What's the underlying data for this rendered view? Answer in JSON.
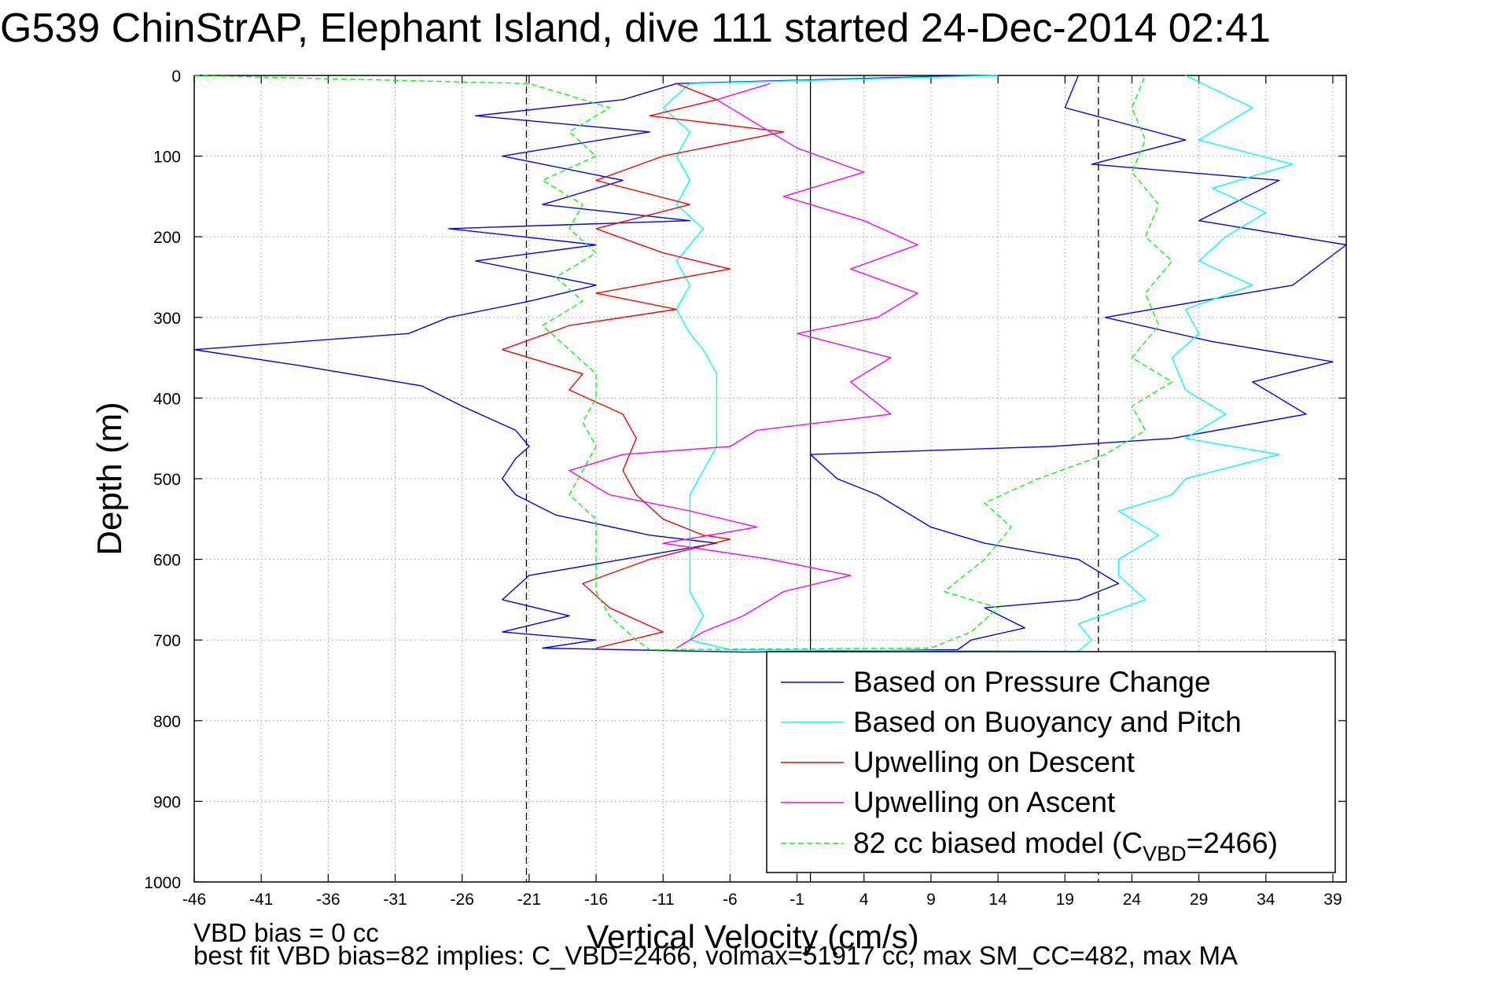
{
  "title": "G539 ChinStrAP, Elephant Island, dive 111 started 24-Dec-2014 02:41",
  "footnote": {
    "line1": "VBD bias = 0 cc",
    "line2": "best fit VBD bias=82 implies: C_VBD=2466, volmax=51917 cc, max SM_CC=482, max MA"
  },
  "chart_data": {
    "type": "line",
    "xlabel": "Vertical Velocity (cm/s)",
    "ylabel": "Depth (m)",
    "xlim": [
      -46,
      40
    ],
    "ylim": [
      0,
      1000
    ],
    "y_reversed": true,
    "grid": true,
    "xticks": [
      -46,
      -41,
      -36,
      -31,
      -26,
      -21,
      -16,
      -11,
      -6,
      -1,
      4,
      9,
      14,
      19,
      24,
      29,
      34,
      39
    ],
    "yticks": [
      0,
      100,
      200,
      300,
      400,
      500,
      600,
      700,
      800,
      900,
      1000
    ],
    "vertical_lines": [
      {
        "x": -21.2,
        "style": "dashed"
      },
      {
        "x": 0,
        "style": "solid"
      },
      {
        "x": 21.5,
        "style": "dashed"
      }
    ],
    "legend_position": "bottom-right",
    "series": [
      {
        "name": "Based on Pressure Change",
        "color": "#0000ff",
        "dash": false,
        "points": [
          [
            12,
            0
          ],
          [
            -10,
            10
          ],
          [
            -14,
            30
          ],
          [
            -25,
            50
          ],
          [
            -12,
            70
          ],
          [
            -23,
            100
          ],
          [
            -14,
            130
          ],
          [
            -20,
            160
          ],
          [
            -9,
            180
          ],
          [
            -27,
            190
          ],
          [
            -16,
            210
          ],
          [
            -25,
            230
          ],
          [
            -16,
            260
          ],
          [
            -21,
            280
          ],
          [
            -27,
            300
          ],
          [
            -30,
            320
          ],
          [
            -46,
            340
          ],
          [
            -38,
            360
          ],
          [
            -29,
            385
          ],
          [
            -26,
            410
          ],
          [
            -22,
            440
          ],
          [
            -21,
            460
          ],
          [
            -22,
            475
          ],
          [
            -23,
            500
          ],
          [
            -22,
            520
          ],
          [
            -19,
            545
          ],
          [
            -12,
            570
          ],
          [
            -7,
            580
          ],
          [
            -14,
            600
          ],
          [
            -21,
            620
          ],
          [
            -23,
            650
          ],
          [
            -18,
            670
          ],
          [
            -23,
            690
          ],
          [
            -16,
            700
          ],
          [
            -20,
            710
          ],
          [
            -5,
            715
          ],
          [
            11,
            712
          ],
          [
            12,
            700
          ],
          [
            16,
            685
          ],
          [
            13,
            660
          ],
          [
            20,
            650
          ],
          [
            23,
            630
          ],
          [
            20,
            600
          ],
          [
            13,
            580
          ],
          [
            9,
            560
          ],
          [
            5,
            520
          ],
          [
            2,
            500
          ],
          [
            0,
            470
          ],
          [
            18,
            460
          ],
          [
            27,
            450
          ],
          [
            37,
            420
          ],
          [
            33,
            380
          ],
          [
            39,
            355
          ],
          [
            30,
            330
          ],
          [
            22,
            300
          ],
          [
            36,
            260
          ],
          [
            40,
            210
          ],
          [
            29,
            180
          ],
          [
            35,
            130
          ],
          [
            21,
            110
          ],
          [
            28,
            80
          ],
          [
            19,
            40
          ],
          [
            20,
            0
          ]
        ]
      },
      {
        "name": "Based on Buoyancy and Pitch",
        "color": "#00ffff",
        "dash": false,
        "points": [
          [
            14,
            0
          ],
          [
            -9,
            10
          ],
          [
            -11,
            40
          ],
          [
            -9,
            70
          ],
          [
            -10,
            100
          ],
          [
            -9,
            130
          ],
          [
            -10,
            160
          ],
          [
            -8,
            190
          ],
          [
            -10,
            230
          ],
          [
            -9,
            260
          ],
          [
            -10,
            290
          ],
          [
            -9,
            320
          ],
          [
            -8,
            340
          ],
          [
            -7,
            370
          ],
          [
            -7,
            400
          ],
          [
            -7,
            430
          ],
          [
            -7,
            460
          ],
          [
            -8,
            490
          ],
          [
            -9,
            520
          ],
          [
            -9,
            550
          ],
          [
            -9,
            580
          ],
          [
            -9,
            610
          ],
          [
            -9,
            640
          ],
          [
            -8,
            670
          ],
          [
            -9,
            700
          ],
          [
            -6,
            712
          ],
          [
            20,
            714
          ],
          [
            21,
            700
          ],
          [
            20,
            680
          ],
          [
            25,
            650
          ],
          [
            23,
            620
          ],
          [
            23,
            600
          ],
          [
            26,
            570
          ],
          [
            23,
            540
          ],
          [
            27,
            520
          ],
          [
            28,
            500
          ],
          [
            35,
            470
          ],
          [
            28,
            450
          ],
          [
            31,
            420
          ],
          [
            28,
            390
          ],
          [
            27,
            350
          ],
          [
            29,
            320
          ],
          [
            28,
            290
          ],
          [
            33,
            260
          ],
          [
            29,
            230
          ],
          [
            31,
            200
          ],
          [
            34,
            170
          ],
          [
            30,
            140
          ],
          [
            36,
            110
          ],
          [
            29,
            80
          ],
          [
            33,
            40
          ],
          [
            28,
            0
          ]
        ]
      },
      {
        "name": "Upwelling on Descent",
        "color": "#ff0000",
        "dash": false,
        "points": [
          [
            -10,
            10
          ],
          [
            -7,
            30
          ],
          [
            -12,
            50
          ],
          [
            -2,
            70
          ],
          [
            -11,
            100
          ],
          [
            -16,
            130
          ],
          [
            -9,
            160
          ],
          [
            -16,
            190
          ],
          [
            -11,
            220
          ],
          [
            -6,
            240
          ],
          [
            -16,
            270
          ],
          [
            -10,
            290
          ],
          [
            -18,
            310
          ],
          [
            -23,
            340
          ],
          [
            -17,
            370
          ],
          [
            -18,
            390
          ],
          [
            -14,
            420
          ],
          [
            -13,
            450
          ],
          [
            -14,
            490
          ],
          [
            -13,
            520
          ],
          [
            -11,
            550
          ],
          [
            -8,
            570
          ],
          [
            -6,
            575
          ],
          [
            -12,
            600
          ],
          [
            -17,
            630
          ],
          [
            -15,
            660
          ],
          [
            -11,
            690
          ],
          [
            -16,
            710
          ]
        ]
      },
      {
        "name": "Upwelling on Ascent",
        "color": "#ff00ff",
        "dash": false,
        "points": [
          [
            -10,
            710
          ],
          [
            -8,
            690
          ],
          [
            -5,
            670
          ],
          [
            -2,
            640
          ],
          [
            3,
            620
          ],
          [
            -3,
            600
          ],
          [
            -11,
            580
          ],
          [
            -4,
            560
          ],
          [
            -9,
            540
          ],
          [
            -15,
            520
          ],
          [
            -18,
            490
          ],
          [
            -14,
            470
          ],
          [
            -6,
            460
          ],
          [
            -4,
            440
          ],
          [
            6,
            420
          ],
          [
            3,
            380
          ],
          [
            6,
            350
          ],
          [
            -1,
            320
          ],
          [
            5,
            300
          ],
          [
            8,
            270
          ],
          [
            3,
            240
          ],
          [
            8,
            210
          ],
          [
            4,
            180
          ],
          [
            -2,
            150
          ],
          [
            4,
            120
          ],
          [
            -1,
            90
          ],
          [
            -4,
            60
          ],
          [
            -7,
            30
          ],
          [
            -3,
            10
          ]
        ]
      },
      {
        "name": "82 cc biased model (C_VBD=2466)",
        "color": "#00ff00",
        "dash": true,
        "points": [
          [
            -46,
            0
          ],
          [
            -21,
            10
          ],
          [
            -15,
            40
          ],
          [
            -18,
            70
          ],
          [
            -16,
            100
          ],
          [
            -20,
            130
          ],
          [
            -17,
            160
          ],
          [
            -18,
            190
          ],
          [
            -16,
            220
          ],
          [
            -19,
            250
          ],
          [
            -17,
            280
          ],
          [
            -20,
            310
          ],
          [
            -18,
            340
          ],
          [
            -16,
            370
          ],
          [
            -16,
            400
          ],
          [
            -17,
            430
          ],
          [
            -16,
            460
          ],
          [
            -17,
            490
          ],
          [
            -18,
            520
          ],
          [
            -16,
            550
          ],
          [
            -16,
            580
          ],
          [
            -16,
            610
          ],
          [
            -16,
            640
          ],
          [
            -15,
            670
          ],
          [
            -13,
            700
          ],
          [
            -12,
            712
          ],
          [
            9,
            710
          ],
          [
            12,
            690
          ],
          [
            14,
            660
          ],
          [
            10,
            640
          ],
          [
            13,
            600
          ],
          [
            15,
            560
          ],
          [
            13,
            530
          ],
          [
            17,
            500
          ],
          [
            22,
            470
          ],
          [
            25,
            440
          ],
          [
            24,
            410
          ],
          [
            27,
            380
          ],
          [
            24,
            350
          ],
          [
            26,
            310
          ],
          [
            25,
            270
          ],
          [
            27,
            230
          ],
          [
            25,
            200
          ],
          [
            26,
            160
          ],
          [
            24,
            120
          ],
          [
            25,
            80
          ],
          [
            24,
            40
          ],
          [
            25,
            0
          ]
        ]
      }
    ]
  }
}
